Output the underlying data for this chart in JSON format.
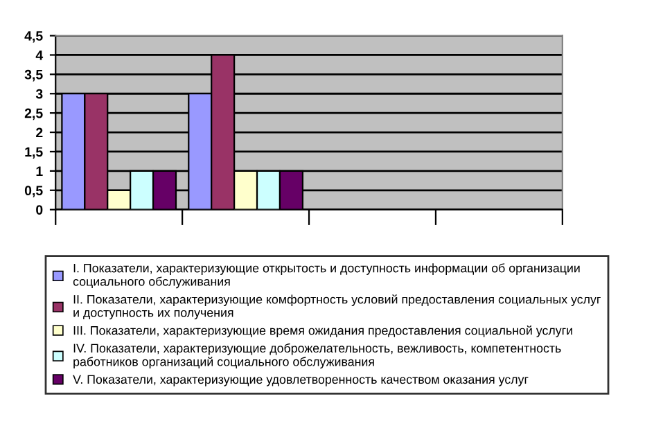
{
  "chart_data": {
    "type": "bar",
    "categories": [
      null,
      null,
      null,
      null
    ],
    "series": [
      {
        "name": "I. Показатели, характеризующие открытость и доступность информации об организации\nсоциального обслуживания",
        "color": "#9999ff",
        "values": [
          3,
          3,
          null,
          null
        ]
      },
      {
        "name": "II. Показатели, характеризующие комфортность условий предоставления социальных услуг\nи доступность их получения",
        "color": "#993366",
        "values": [
          3,
          4,
          null,
          null
        ]
      },
      {
        "name": "III. Показатели, характеризующие время ожидания предоставления социальной услуги",
        "color": "#ffffcc",
        "values": [
          0.5,
          1,
          null,
          null
        ]
      },
      {
        "name": "IV. Показатели, характеризующие доброжелательность, вежливость, компетентность\nработников организаций социального обслуживания",
        "color": "#ccffff",
        "values": [
          1,
          1,
          null,
          null
        ]
      },
      {
        "name": "V. Показатели, характеризующие удовлетворенность качеством оказания услуг",
        "color": "#660066",
        "values": [
          1,
          1,
          null,
          null
        ]
      }
    ],
    "ylim": [
      0,
      4.5
    ],
    "yticks": [
      0,
      {
        "value": 0.5,
        "label": "0,5"
      },
      1,
      {
        "value": 1.5,
        "label": "1,5"
      },
      2,
      {
        "value": 2.5,
        "label": "2,5"
      },
      3,
      {
        "value": 3.5,
        "label": "3,5"
      },
      4,
      {
        "value": 4.5,
        "label": "4,5"
      }
    ],
    "grid": "y",
    "legend": "bottom",
    "tick_labels": "y"
  }
}
